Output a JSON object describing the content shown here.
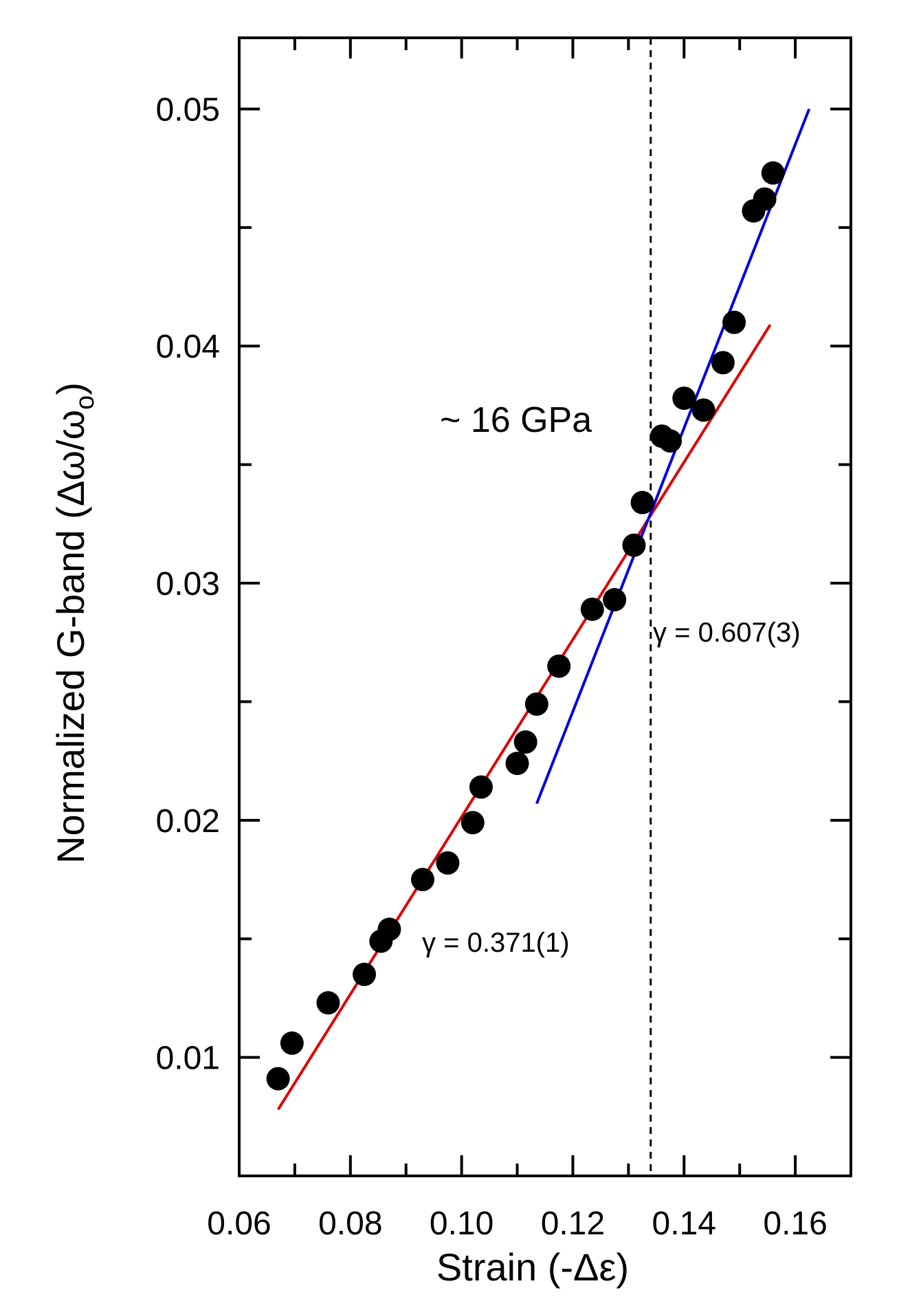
{
  "chart_data": {
    "type": "scatter",
    "xlabel": "Strain (-Δε)",
    "ylabel": "Normalized G-band (Δω/ω",
    "ylabel_subscript": "o",
    "ylabel_close": ")",
    "xlim": [
      0.06,
      0.17
    ],
    "ylim": [
      0.005,
      0.053
    ],
    "xticks": [
      0.06,
      0.08,
      0.1,
      0.12,
      0.14,
      0.16
    ],
    "xtick_labels": [
      "0.06",
      "0.08",
      "0.10",
      "0.12",
      "0.14",
      "0.16"
    ],
    "xminor_ticks": [
      0.07,
      0.09,
      0.11,
      0.13,
      0.15
    ],
    "yticks": [
      0.01,
      0.02,
      0.03,
      0.04,
      0.05
    ],
    "ytick_labels": [
      "0.01",
      "0.02",
      "0.03",
      "0.04",
      "0.05"
    ],
    "yminor_ticks": [
      0.015,
      0.025,
      0.035,
      0.045
    ],
    "grid": false,
    "series": [
      {
        "color": "#000000",
        "marker": "circle",
        "x": [
          0.067,
          0.0695,
          0.076,
          0.0825,
          0.0855,
          0.087,
          0.093,
          0.0975,
          0.102,
          0.1035,
          0.11,
          0.1115,
          0.1135,
          0.1175,
          0.1235,
          0.1275,
          0.131,
          0.1325,
          0.136,
          0.1375,
          0.14,
          0.1435,
          0.147,
          0.149,
          0.1525,
          0.1545,
          0.156
        ],
        "y": [
          0.0091,
          0.0106,
          0.0123,
          0.0135,
          0.0149,
          0.0154,
          0.0175,
          0.0182,
          0.0199,
          0.0214,
          0.0224,
          0.0233,
          0.0249,
          0.0265,
          0.0289,
          0.0293,
          0.0316,
          0.0334,
          0.0362,
          0.036,
          0.0378,
          0.0373,
          0.0393,
          0.041,
          0.0457,
          0.0462,
          0.0473
        ]
      }
    ],
    "fit_lines": [
      {
        "color": "#e00000",
        "x": [
          0.067,
          0.1555
        ],
        "y": [
          0.0078,
          0.0409
        ]
      },
      {
        "color": "#0000e0",
        "x": [
          0.1135,
          0.1625
        ],
        "y": [
          0.0207,
          0.05
        ]
      }
    ],
    "vline": {
      "x": 0.134,
      "color": "#000000",
      "style": "dashed"
    },
    "annotations": {
      "pressure": "~ 16 GPa",
      "gamma_low": "γ = 0.371(1)",
      "gamma_high": "γ = 0.607(3)"
    }
  }
}
